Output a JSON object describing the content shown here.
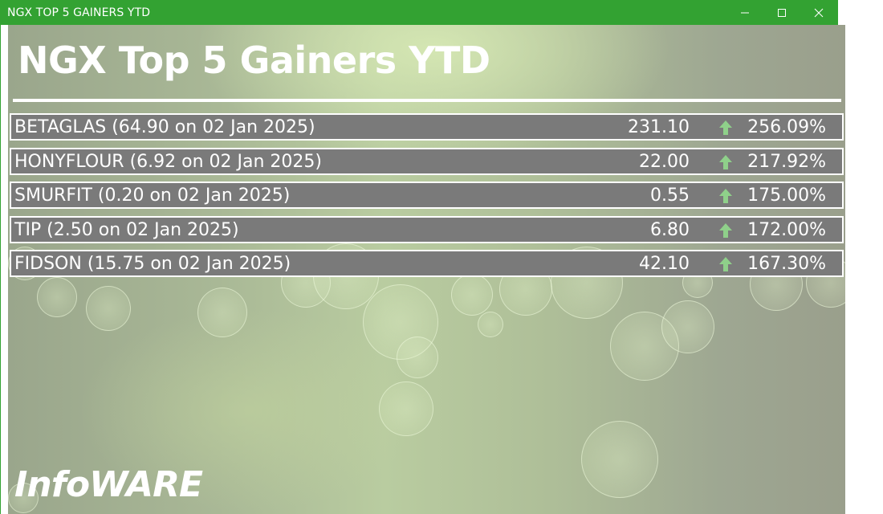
{
  "window": {
    "title": "NGX TOP 5 GAINERS YTD",
    "controls": [
      "minimize-icon",
      "maximize-icon",
      "close-icon"
    ],
    "accent_color": "#33a232"
  },
  "page": {
    "heading": "NGX Top 5 Gainers YTD",
    "logo_text": "InfoWARE"
  },
  "gainers": [
    {
      "label": "BETAGLAS (64.90 on 02 Jan 2025)",
      "price": "231.10",
      "change": "256.09%",
      "icon": "up-arrow-icon"
    },
    {
      "label": "HONYFLOUR (6.92 on 02 Jan 2025)",
      "price": "22.00",
      "change": "217.92%",
      "icon": "up-arrow-icon"
    },
    {
      "label": "SMURFIT (0.20 on 02 Jan 2025)",
      "price": "0.55",
      "change": "175.00%",
      "icon": "up-arrow-icon"
    },
    {
      "label": "TIP (2.50 on 02 Jan 2025)",
      "price": "6.80",
      "change": "172.00%",
      "icon": "up-arrow-icon"
    },
    {
      "label": "FIDSON (15.75 on 02 Jan 2025)",
      "price": "42.10",
      "change": "167.30%",
      "icon": "up-arrow-icon"
    }
  ],
  "colors": {
    "row_background": "#7a7a7a",
    "arrow": "#8fd08a"
  }
}
